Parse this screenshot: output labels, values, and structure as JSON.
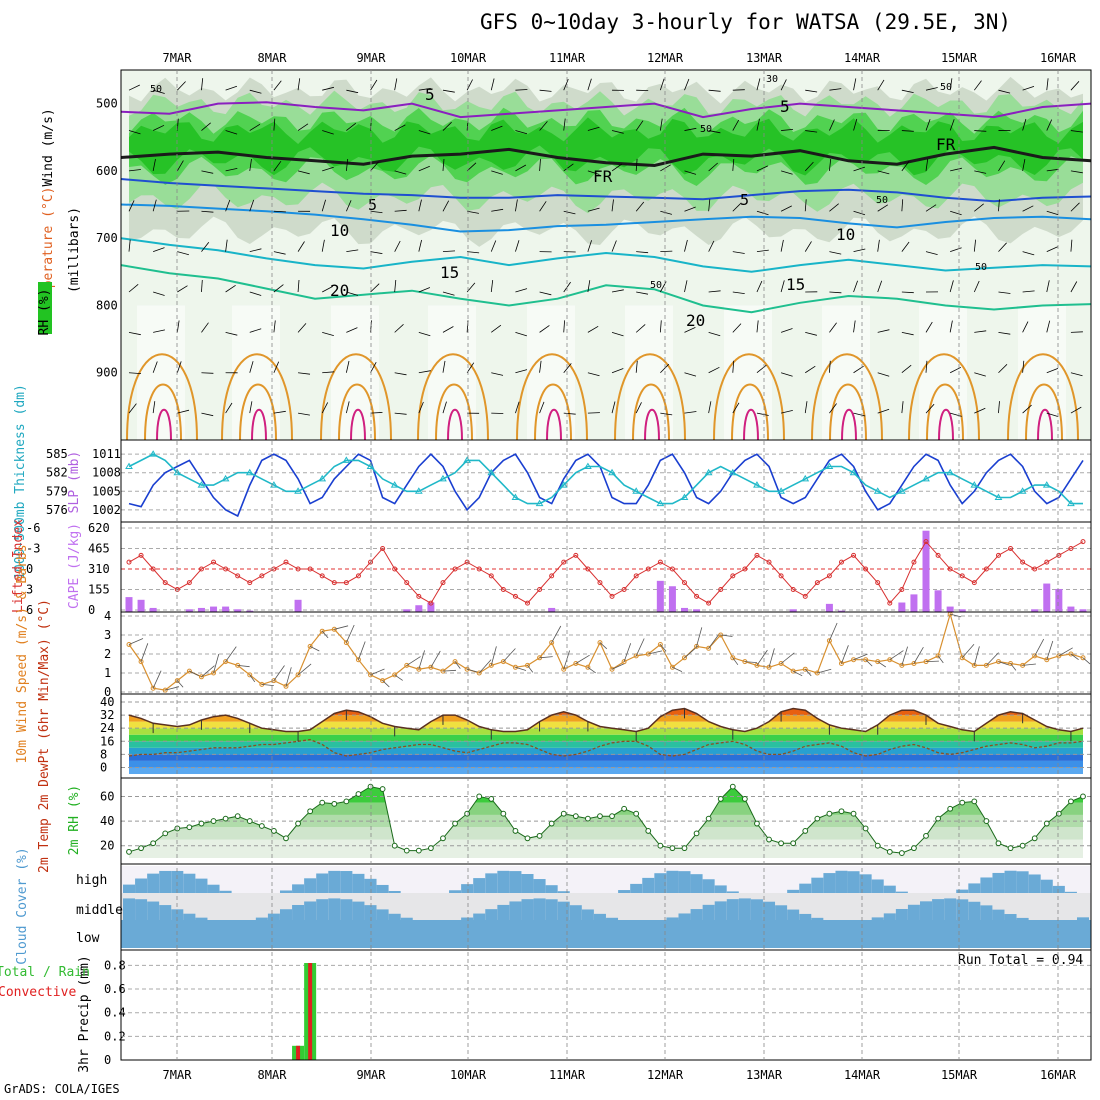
{
  "title": "GFS 0~10day 3-hourly for WATSA (29.5E, 3N)",
  "credit": "GrADS: COLA/IGES",
  "dates": [
    "7MAR",
    "8MAR",
    "9MAR",
    "10MAR",
    "11MAR",
    "12MAR",
    "13MAR",
    "14MAR",
    "15MAR",
    "16MAR"
  ],
  "colors": {
    "rh_green": "#22c322",
    "temp_purple": "#8a1fbf",
    "temp_blue": "#1f4fd0",
    "temp_cyan": "#18b4c8",
    "temp_teal": "#1fbf8f",
    "temp_orange": "#e0962a",
    "slp_blue": "#1a3fd0",
    "thick_cyan": "#20b8c8",
    "li_red": "#d83030",
    "cape_violet": "#c070f0",
    "wind_orange": "#d89030",
    "rh2m_green": "#33cc33",
    "cloud_blue": "#6aaad6",
    "precip_green": "#33cc33",
    "precip_red": "#e02020"
  },
  "chart_data": [
    {
      "type": "heatmap",
      "name": "vertical-profile",
      "ylabel_left_rh": "RH (%)",
      "ylabel_temp": "Temperature (°C)",
      "ylabel_wind": "Wind (m/s)",
      "ylabel_units": "(millibars)",
      "yticks": [
        500,
        600,
        700,
        800,
        900
      ],
      "ylim": [
        1000,
        450
      ],
      "contour_labels": [
        "5",
        "5",
        "5",
        "5",
        "10",
        "10",
        "15",
        "15",
        "20",
        "20",
        "FR",
        "FR",
        "50",
        "50",
        "50",
        "50",
        "50",
        "50",
        "30",
        "30"
      ],
      "isotherms": [
        {
          "name": "-5",
          "color": "#8a1fbf",
          "p": [
            512,
            515,
            500,
            498,
            505,
            510,
            500,
            520,
            515,
            510,
            505,
            500,
            520,
            508,
            500,
            505,
            510,
            515,
            520,
            505,
            500
          ]
        },
        {
          "name": "0",
          "color": "#1a1a1a",
          "p": [
            580,
            575,
            572,
            580,
            585,
            590,
            578,
            575,
            568,
            580,
            588,
            592,
            575,
            578,
            570,
            585,
            590,
            575,
            565,
            580,
            585
          ]
        },
        {
          "name": "5",
          "color": "#1f4fd0",
          "p": [
            612,
            618,
            622,
            626,
            630,
            634,
            636,
            640,
            640,
            636,
            638,
            640,
            642,
            636,
            630,
            628,
            632,
            640,
            645,
            640,
            638
          ]
        },
        {
          "name": "10",
          "color": "#1a8fe0",
          "p": [
            650,
            652,
            656,
            660,
            665,
            672,
            680,
            690,
            688,
            682,
            680,
            676,
            672,
            668,
            670,
            678,
            684,
            676,
            670,
            668,
            672
          ]
        },
        {
          "name": "15",
          "color": "#18b4c8",
          "p": [
            700,
            710,
            718,
            730,
            740,
            745,
            735,
            728,
            740,
            730,
            722,
            728,
            742,
            750,
            740,
            732,
            740,
            748,
            744,
            740,
            742
          ]
        },
        {
          "name": "20",
          "color": "#1fbf8f",
          "p": [
            740,
            752,
            760,
            775,
            790,
            784,
            778,
            790,
            800,
            790,
            770,
            776,
            800,
            810,
            796,
            786,
            790,
            800,
            806,
            800,
            798
          ]
        }
      ]
    },
    {
      "type": "line",
      "name": "slp-thickness",
      "ylabel_left": "1000-500mb Thickness (dm)",
      "ylabel_right": "SLP (mb)",
      "yticks_left": [
        576,
        579,
        582,
        585
      ],
      "yticks_right": [
        1002,
        1005,
        1008,
        1011
      ],
      "series": [
        {
          "name": "SLP",
          "axis": "right",
          "values": [
            1003,
            1002.5,
            1006,
            1008,
            1009,
            1010,
            1007,
            1004,
            1002,
            1001,
            1006,
            1010,
            1011,
            1010,
            1007,
            1003,
            1004,
            1007,
            1009,
            1011,
            1010,
            1004,
            1003,
            1006,
            1009,
            1011,
            1009,
            1005,
            1002,
            1004,
            1008,
            1010,
            1011,
            1008,
            1004,
            1003,
            1007,
            1010,
            1011,
            1009,
            1004,
            1003,
            1003,
            1006,
            1010,
            1011,
            1008,
            1004,
            1003,
            1005,
            1008,
            1010,
            1011,
            1009,
            1004,
            1003,
            1004,
            1007,
            1010,
            1011,
            1009,
            1005,
            1002,
            1003,
            1006,
            1009,
            1011,
            1010,
            1006,
            1003,
            1005,
            1008,
            1010,
            1011,
            1009,
            1005,
            1003,
            1004,
            1007,
            1010
          ]
        },
        {
          "name": "Thickness",
          "axis": "left",
          "values": [
            583,
            584,
            585,
            584,
            582,
            581,
            580,
            580,
            581,
            582,
            582,
            581,
            580,
            579,
            579,
            580,
            581,
            583,
            584,
            584,
            583,
            581,
            580,
            579,
            579,
            580,
            581,
            582,
            584,
            584,
            582,
            580,
            578,
            577,
            577,
            578,
            580,
            582,
            583,
            583,
            582,
            580,
            579,
            578,
            577,
            577,
            578,
            580,
            582,
            583,
            582,
            581,
            580,
            579,
            579,
            580,
            581,
            582,
            583,
            583,
            582,
            580,
            579,
            578,
            579,
            580,
            581,
            582,
            582,
            581,
            580,
            579,
            578,
            578,
            579,
            580,
            580,
            579,
            577,
            577
          ]
        }
      ]
    },
    {
      "type": "bar",
      "name": "lifted-index-cape",
      "ylabel_left": "Lifted Index",
      "ylabel_right": "CAPE (J/kg)",
      "yticks_left": [
        "-6",
        "-3",
        "0",
        "3",
        "6"
      ],
      "yticks_right": [
        "620",
        "465",
        "310",
        "155",
        "0"
      ],
      "series": [
        {
          "name": "Lifted Index",
          "values": [
            -1,
            -2,
            0,
            2,
            3,
            2,
            0,
            -1,
            0,
            1,
            2,
            1,
            0,
            -1,
            0,
            0,
            1,
            2,
            2,
            1,
            -1,
            -3,
            0,
            2,
            4,
            5,
            2,
            0,
            -1,
            0,
            1,
            3,
            4,
            5,
            3,
            1,
            -1,
            -2,
            0,
            2,
            4,
            3,
            1,
            0,
            -1,
            0,
            2,
            4,
            5,
            3,
            1,
            0,
            -2,
            -1,
            1,
            3,
            4,
            2,
            1,
            -1,
            -2,
            0,
            2,
            5,
            3,
            -1,
            -4,
            -2,
            0,
            1,
            2,
            0,
            -2,
            -3,
            -1,
            0,
            -1,
            -2,
            -3,
            -4
          ]
        },
        {
          "name": "CAPE",
          "values": [
            110,
            90,
            30,
            0,
            0,
            20,
            30,
            40,
            40,
            20,
            10,
            0,
            0,
            0,
            90,
            0,
            0,
            0,
            0,
            0,
            0,
            0,
            0,
            20,
            50,
            70,
            0,
            0,
            0,
            0,
            0,
            0,
            0,
            0,
            0,
            30,
            0,
            0,
            0,
            0,
            0,
            0,
            0,
            0,
            230,
            190,
            30,
            20,
            0,
            0,
            0,
            0,
            0,
            0,
            0,
            20,
            0,
            0,
            60,
            10,
            0,
            0,
            0,
            0,
            70,
            130,
            600,
            160,
            40,
            20,
            0,
            0,
            0,
            0,
            0,
            20,
            210,
            170,
            40,
            20
          ]
        }
      ]
    },
    {
      "type": "line",
      "name": "wind-10m",
      "ylabel": "10m Wind Speed (m/s) & Barbs",
      "yticks": [
        0,
        1,
        2,
        3,
        4
      ],
      "values": [
        2.5,
        1.6,
        0.2,
        0.1,
        0.6,
        1.1,
        0.8,
        1.0,
        1.6,
        1.4,
        0.9,
        0.4,
        0.6,
        0.3,
        0.9,
        2.4,
        3.2,
        3.3,
        2.6,
        1.7,
        0.9,
        0.6,
        0.9,
        1.4,
        1.2,
        1.3,
        1.1,
        1.6,
        1.2,
        1.0,
        1.4,
        1.6,
        1.3,
        1.4,
        1.8,
        2.6,
        1.2,
        1.5,
        1.3,
        2.6,
        1.2,
        1.6,
        1.9,
        2.0,
        2.5,
        1.3,
        1.8,
        2.4,
        2.3,
        3.0,
        1.8,
        1.6,
        1.4,
        1.3,
        1.5,
        1.1,
        1.2,
        1.0,
        2.7,
        1.5,
        1.7,
        1.7,
        1.6,
        1.7,
        1.4,
        1.5,
        1.6,
        1.9,
        4.1,
        1.8,
        1.4,
        1.4,
        1.6,
        1.5,
        1.4,
        1.9,
        1.7,
        1.9,
        2.0,
        1.8
      ]
    },
    {
      "type": "area",
      "name": "temp-dewpt",
      "ylabel": "2m Temp 2m DewPt (6hr Min/Max) (°C)",
      "yticks": [
        40,
        32,
        24,
        16,
        8,
        0
      ],
      "series": [
        {
          "name": "Temp",
          "values": [
            32,
            30,
            27,
            26,
            25,
            26,
            29,
            31,
            32,
            30,
            27,
            24,
            23,
            22,
            22,
            23,
            28,
            33,
            35,
            34,
            31,
            27,
            25,
            24,
            23,
            28,
            32,
            32,
            29,
            25,
            23,
            22,
            22,
            23,
            28,
            32,
            34,
            32,
            28,
            25,
            24,
            23,
            22,
            24,
            31,
            35,
            36,
            33,
            28,
            25,
            23,
            22,
            24,
            28,
            34,
            36,
            35,
            30,
            26,
            24,
            23,
            22,
            26,
            32,
            35,
            35,
            32,
            27,
            25,
            23,
            22,
            27,
            32,
            34,
            33,
            29,
            25,
            23,
            22,
            24
          ]
        },
        {
          "name": "DewPt",
          "values": [
            7,
            8,
            8,
            9,
            9,
            10,
            11,
            12,
            12,
            12,
            13,
            14,
            14,
            15,
            16,
            17,
            14,
            9,
            7,
            8,
            9,
            11,
            12,
            13,
            14,
            14,
            12,
            10,
            9,
            11,
            13,
            15,
            15,
            14,
            11,
            8,
            7,
            8,
            10,
            13,
            15,
            16,
            16,
            13,
            8,
            7,
            8,
            11,
            14,
            15,
            16,
            14,
            10,
            8,
            8,
            10,
            13,
            14,
            15,
            13,
            9,
            7,
            8,
            11,
            13,
            14,
            12,
            9,
            8,
            9,
            11,
            13,
            14,
            15,
            14,
            12,
            13,
            15,
            15,
            16
          ]
        }
      ]
    },
    {
      "type": "area",
      "name": "rh-2m",
      "ylabel": "2m RH (%)",
      "yticks": [
        20,
        40,
        60
      ],
      "values": [
        15,
        18,
        22,
        30,
        34,
        35,
        38,
        40,
        42,
        44,
        40,
        36,
        32,
        26,
        38,
        48,
        55,
        54,
        56,
        62,
        68,
        66,
        20,
        16,
        16,
        18,
        26,
        38,
        46,
        60,
        58,
        46,
        32,
        26,
        28,
        38,
        46,
        44,
        42,
        44,
        44,
        50,
        46,
        32,
        20,
        18,
        18,
        30,
        42,
        58,
        68,
        58,
        38,
        25,
        22,
        22,
        32,
        42,
        46,
        48,
        46,
        34,
        20,
        15,
        14,
        18,
        28,
        42,
        50,
        55,
        56,
        40,
        22,
        18,
        20,
        26,
        38,
        46,
        56,
        60
      ]
    },
    {
      "type": "heatmap",
      "name": "cloud-cover",
      "ylabel": "Cloud Cover (%)",
      "levels": [
        "high",
        "middle",
        "low"
      ]
    },
    {
      "type": "bar",
      "name": "precip-3hr",
      "ylabel": "3hr Precip (mm)",
      "ylabel_left": "Total / Rain Convective",
      "yticks": [
        0,
        0.2,
        0.4,
        0.6,
        0.8
      ],
      "run_total_text": "Run Total = 0.94",
      "series": [
        {
          "name": "Total",
          "values": [
            {
              "i": 14,
              "v": 0.12
            },
            {
              "i": 15,
              "v": 0.82
            }
          ]
        },
        {
          "name": "Convective",
          "values": [
            {
              "i": 14,
              "v": 0.12
            },
            {
              "i": 15,
              "v": 0.82
            }
          ]
        }
      ]
    }
  ]
}
